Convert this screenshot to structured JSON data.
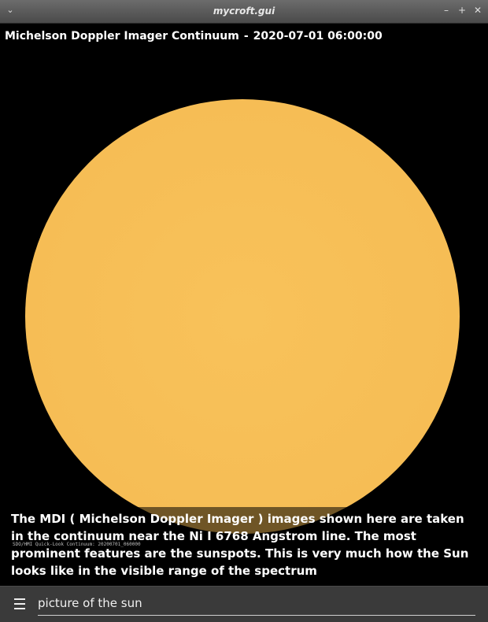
{
  "window": {
    "title": "mycroft.gui",
    "menu_glyph": "⌄",
    "controls": {
      "minimize": "–",
      "maximize": "+",
      "close": "✕"
    }
  },
  "header": {
    "instrument": "Michelson Doppler Imager Continuum",
    "separator": "-",
    "timestamp": "2020-07-01 06:00:00"
  },
  "image": {
    "watermark": "SDO/HMI Quick-Look Continuum: 20200701_060000",
    "sun_color": "#f6bd55"
  },
  "description": "The MDI ( Michelson Doppler Imager ) images shown here are taken in the continuum near the Ni I 6768 Angstrom line. The most prominent features are the sunspots. This is very much how the Sun looks like in the visible range of the spectrum",
  "bottom_bar": {
    "menu_icon": "hamburger-menu-icon",
    "query": "picture of the sun"
  }
}
